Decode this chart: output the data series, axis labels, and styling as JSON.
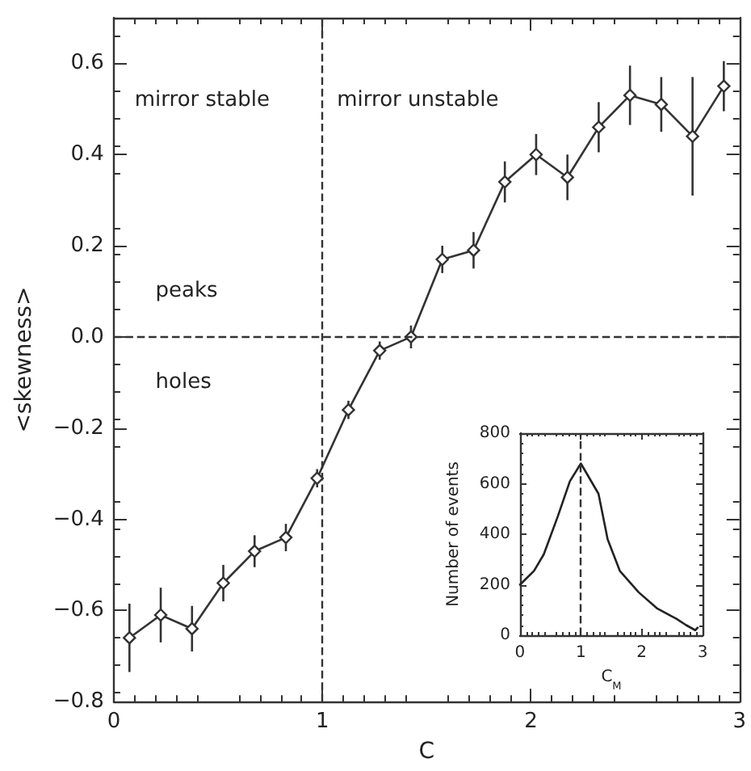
{
  "chart_data": [
    {
      "type": "line",
      "xlabel": "C",
      "ylabel": "<skewness>",
      "x": [
        0.075,
        0.225,
        0.375,
        0.525,
        0.675,
        0.825,
        0.975,
        1.125,
        1.275,
        1.425,
        1.575,
        1.725,
        1.875,
        2.025,
        2.175,
        2.325,
        2.475,
        2.625,
        2.775,
        2.925
      ],
      "series": [
        {
          "color": "#333333",
          "values": [
            -0.66,
            -0.61,
            -0.64,
            -0.54,
            -0.47,
            -0.44,
            -0.31,
            -0.16,
            -0.03,
            0.0,
            0.17,
            0.19,
            0.34,
            0.4,
            0.35,
            0.46,
            0.53,
            0.51,
            0.44,
            0.55
          ],
          "errors": [
            0.075,
            0.06,
            0.05,
            0.04,
            0.035,
            0.03,
            0.02,
            0.02,
            0.02,
            0.025,
            0.03,
            0.04,
            0.045,
            0.045,
            0.05,
            0.055,
            0.065,
            0.06,
            0.13,
            0.055
          ]
        }
      ],
      "xlim": [
        0,
        3
      ],
      "xticks": [
        0,
        1,
        2,
        3
      ],
      "ylim": [
        -0.8,
        0.7
      ],
      "yticks": [
        -0.8,
        -0.6,
        -0.4,
        -0.2,
        {
          "value": 0,
          "label": "0.0"
        },
        0.2,
        0.4,
        0.6
      ],
      "marker": "diamond",
      "line_style": "solid",
      "ref_lines": [
        {
          "axis": "x",
          "value": 1,
          "line_style": "dashed"
        },
        {
          "axis": "y",
          "value": 0,
          "line_style": "dashed"
        }
      ],
      "annotations": [
        "mirror stable",
        "mirror unstable",
        "peaks",
        "holes"
      ]
    },
    {
      "type": "line",
      "xlabel": "C$_{M}$",
      "ylabel": "Number of events",
      "x": [
        0,
        0.23,
        0.39,
        0.62,
        0.82,
        1.0,
        1.29,
        1.44,
        1.64,
        1.95,
        2.26,
        2.57,
        2.73,
        2.88,
        2.92
      ],
      "series": [
        {
          "color": "#222222",
          "values": [
            200,
            255,
            320,
            470,
            610,
            680,
            560,
            380,
            255,
            170,
            105,
            65,
            40,
            20,
            30
          ]
        }
      ],
      "xlim": [
        0,
        3
      ],
      "xticks": [
        0,
        1,
        2,
        3
      ],
      "ylim": [
        0,
        800
      ],
      "yticks": [
        0,
        200,
        400,
        600,
        800
      ],
      "marker": "none",
      "line_style": "solid",
      "ref_lines": [
        {
          "axis": "x",
          "value": 1,
          "line_style": "dashed"
        }
      ]
    }
  ]
}
